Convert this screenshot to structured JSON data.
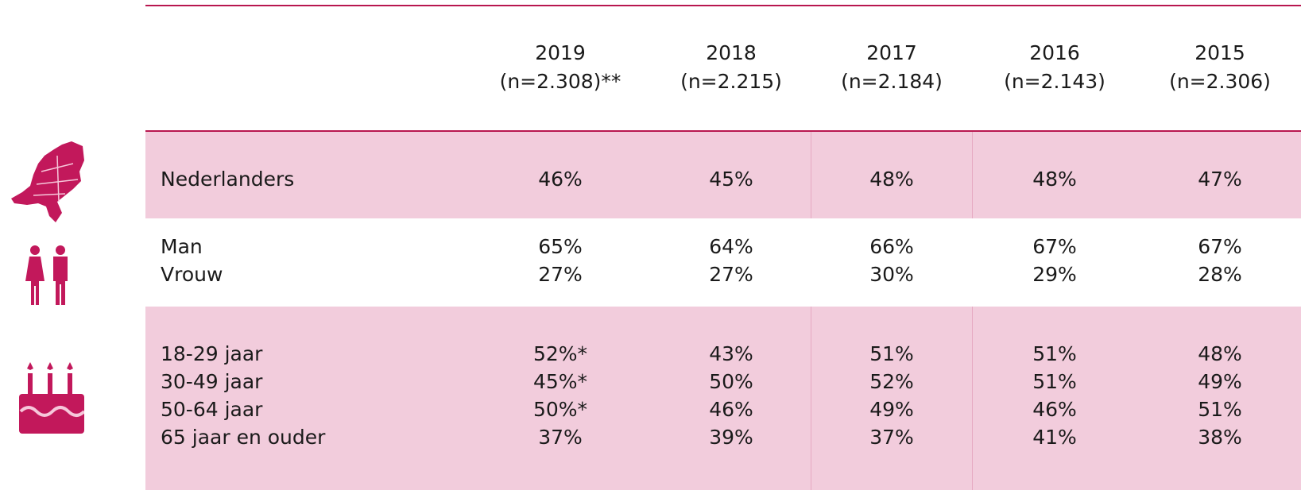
{
  "header": {
    "columns": [
      {
        "year": "2019",
        "n": "(n=2.308)**"
      },
      {
        "year": "2018",
        "n": "(n=2.215)"
      },
      {
        "year": "2017",
        "n": "(n=2.184)"
      },
      {
        "year": "2016",
        "n": "(n=2.143)"
      },
      {
        "year": "2015",
        "n": "(n=2.306)"
      }
    ]
  },
  "groups": [
    {
      "rows": [
        {
          "label": "Nederlanders",
          "values": [
            "46%",
            "45%",
            "48%",
            "48%",
            "47%"
          ]
        }
      ]
    },
    {
      "rows": [
        {
          "label": "Man",
          "values": [
            "65%",
            "64%",
            "66%",
            "67%",
            "67%"
          ]
        },
        {
          "label": "Vrouw",
          "values": [
            "27%",
            "27%",
            "30%",
            "29%",
            "28%"
          ]
        }
      ]
    },
    {
      "rows": [
        {
          "label": "18-29 jaar",
          "values": [
            "52%*",
            "43%",
            "51%",
            "51%",
            "48%"
          ]
        },
        {
          "label": "30-49 jaar",
          "values": [
            "45%*",
            "50%",
            "52%",
            "51%",
            "49%"
          ]
        },
        {
          "label": "50-64 jaar",
          "values": [
            "50%*",
            "46%",
            "49%",
            "46%",
            "51%"
          ]
        },
        {
          "label": "65 jaar en ouder",
          "values": [
            "37%",
            "39%",
            "37%",
            "41%",
            "38%"
          ]
        }
      ]
    }
  ]
}
